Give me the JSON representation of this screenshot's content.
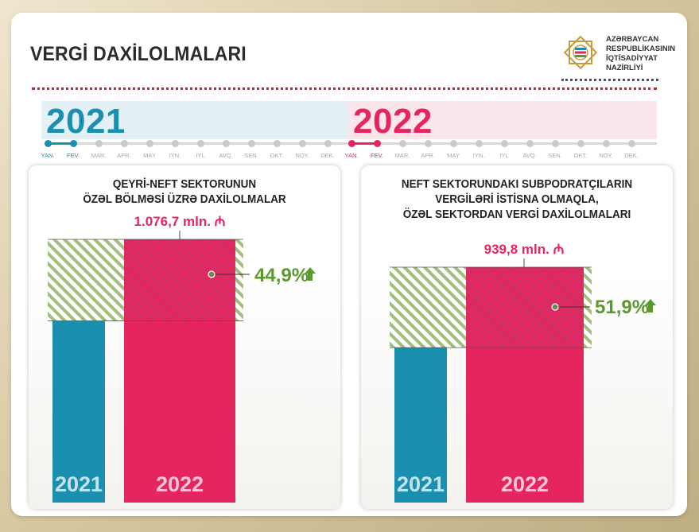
{
  "header": {
    "title": "VERGİ DAXİLOLMALARI",
    "ministry_lines": [
      "AZƏRBAYCAN",
      "RESPUBLİKASININ",
      "İQTİSADİYYAT",
      "NAZİRLİYİ"
    ]
  },
  "timeline": {
    "years": [
      {
        "label": "2021",
        "months": [
          "YAN.",
          "FEV.",
          "MAR.",
          "APR.",
          "MAY",
          "İYN.",
          "İYL",
          "AVQ.",
          "SEN.",
          "OKT.",
          "NOY.",
          "DEK."
        ],
        "active": 12
      },
      {
        "label": "2022",
        "months": [
          "YAN.",
          "FEV.",
          "MAR.",
          "APR.",
          "MAY",
          "İYN.",
          "İYL",
          "AVQ.",
          "SEN.",
          "OKT.",
          "NOY.",
          "DEK."
        ],
        "active": 2
      }
    ]
  },
  "colors": {
    "y2021": "#1a8fb0",
    "y2022": "#e5255e",
    "growth": "#5a9a2a",
    "hatch": "#9fbf7d",
    "timeline_2021": "#1a8fb0",
    "timeline_2022": "#e5255e"
  },
  "chart_data": [
    {
      "type": "bar",
      "title": "QEYRİ-NEFT SEKTORUNUN ÖZƏL BÖLMƏSİ ÜZRƏ DAXİLOLMALAR",
      "title_lines": [
        "QEYRİ-NEFT SEKTORUNUN",
        "ÖZƏL BÖLMƏSİ ÜZRƏ DAXİLOLMALAR"
      ],
      "categories": [
        "2021",
        "2022"
      ],
      "values": [
        743.1,
        1076.7
      ],
      "value_label_2022": "1.076,7 mln. ₼",
      "change_label": "44,9%",
      "change_pct": 44.9
    },
    {
      "type": "bar",
      "title": "NEFT SEKTORUNDAKI SUBPODRATÇILARIN VERGİLƏRİ İSTİSNA OLMAQLA, ÖZƏL SEKTORDAN VERGİ DAXİLOLMALARI",
      "title_lines": [
        "NEFT SEKTORUNDAKI SUBPODRATÇILARIN",
        "VERGİLƏRİ İSTİSNA OLMAQLA,",
        "ÖZƏL SEKTORDAN VERGİ DAXİLOLMALARI"
      ],
      "categories": [
        "2021",
        "2022"
      ],
      "values": [
        618.8,
        939.8
      ],
      "value_label_2022": "939,8 mln. ₼",
      "change_label": "51,9%",
      "change_pct": 51.9
    }
  ]
}
